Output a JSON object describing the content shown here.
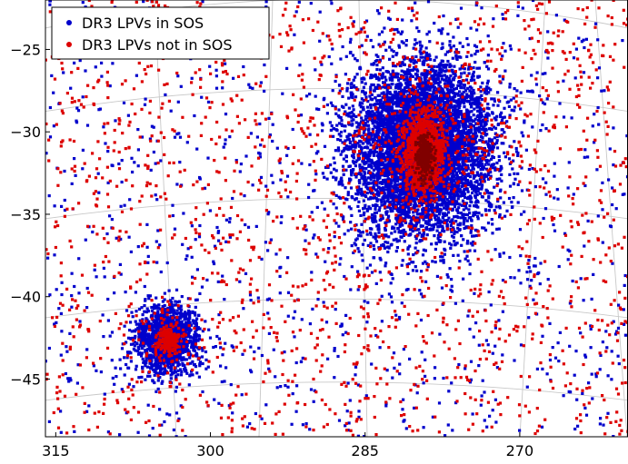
{
  "chart_data": {
    "type": "scatter",
    "title": "",
    "xlabel": "",
    "ylabel": "",
    "xlim": [
      316,
      259.5
    ],
    "ylim": [
      -48.5,
      -22
    ],
    "x_ticks": [
      315,
      300,
      285,
      270
    ],
    "x_tick_labels": [
      "315",
      "300",
      "285",
      "270"
    ],
    "y_ticks": [
      -25,
      -30,
      -35,
      -40,
      -45
    ],
    "y_tick_labels": [
      "−25",
      "−30",
      "−35",
      "−40",
      "−45"
    ],
    "grid": "curved celestial graticule (light grey)",
    "legend": {
      "placement": "top-left",
      "entries": [
        {
          "label": "DR3 LPVs in SOS",
          "color": "#0000cc"
        },
        {
          "label": "DR3 LPVs not in SOS",
          "color": "#dd0000"
        }
      ]
    },
    "series": [
      {
        "name": "DR3 LPVs in SOS",
        "color": "#0000cc",
        "points": [
          [
            280.5,
            -30.5
          ],
          [
            284,
            -28.5
          ],
          [
            276,
            -32
          ],
          [
            283,
            -34
          ],
          [
            274,
            -29
          ],
          [
            278,
            -36
          ],
          [
            287,
            -31
          ],
          [
            272,
            -31.5
          ],
          [
            281,
            -26.5
          ],
          [
            285,
            -33
          ],
          [
            276.5,
            -27.5
          ],
          [
            279,
            -38
          ],
          [
            273,
            -34
          ],
          [
            304.5,
            -42.5
          ],
          [
            303,
            -41
          ],
          [
            306.5,
            -44
          ],
          [
            301.5,
            -43
          ],
          [
            305,
            -40.5
          ],
          [
            302,
            -44.8
          ],
          [
            300.5,
            -41.5
          ]
        ]
      },
      {
        "name": "DR3 LPVs not in SOS",
        "color": "#dd0000",
        "points": [
          [
            279,
            -31
          ],
          [
            280,
            -30.2
          ],
          [
            278.5,
            -32.5
          ],
          [
            281,
            -33.5
          ],
          [
            280.5,
            -29.5
          ],
          [
            277.5,
            -30.5
          ],
          [
            282,
            -31.5
          ],
          [
            279.5,
            -34
          ],
          [
            304,
            -42.5
          ],
          [
            303.5,
            -42.8
          ],
          [
            310,
            -27
          ],
          [
            296,
            -37
          ],
          [
            265,
            -40
          ],
          [
            290,
            -45
          ],
          [
            312,
            -33
          ],
          [
            268,
            -24
          ],
          [
            298,
            -28
          ],
          [
            262,
            -46
          ],
          [
            289,
            -39
          ],
          [
            308,
            -47
          ]
        ]
      }
    ],
    "annotations": []
  },
  "render": {
    "seed": 7,
    "clusters": [
      {
        "series": 0,
        "cx": 279.5,
        "cy": -31.0,
        "sx": 3.4,
        "sy": 2.6,
        "n": 6500
      },
      {
        "series": 0,
        "cx": 304.2,
        "cy": -42.6,
        "sx": 1.6,
        "sy": 1.05,
        "n": 1400
      },
      {
        "series": 1,
        "cx": 279.3,
        "cy": -31.3,
        "sx": 1.0,
        "sy": 1.25,
        "n": 1100
      },
      {
        "series": 1,
        "cx": 279.5,
        "cy": -31.0,
        "sx": 3.0,
        "sy": 2.4,
        "n": 200
      },
      {
        "series": 1,
        "cx": 304.0,
        "cy": -42.7,
        "sx": 0.55,
        "sy": 0.4,
        "n": 180
      },
      {
        "series": 1,
        "cx": 304.2,
        "cy": -42.6,
        "sx": 1.3,
        "sy": 0.9,
        "n": 60
      }
    ],
    "background": [
      {
        "series": 0,
        "n": 1000
      },
      {
        "series": 1,
        "n": 1600
      }
    ],
    "core": {
      "cx": 279.2,
      "cy": -31.4,
      "sx": 0.45,
      "sy": 0.7,
      "n": 260,
      "color": "#440000"
    }
  }
}
